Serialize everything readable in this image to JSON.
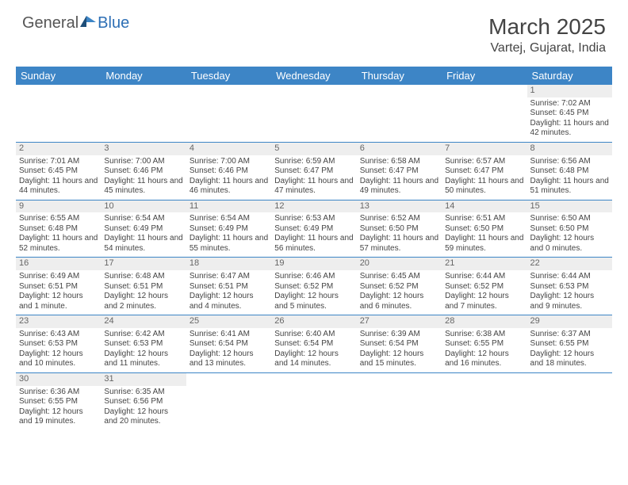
{
  "logo": {
    "part1": "General",
    "part2": "Blue"
  },
  "title": "March 2025",
  "location": "Vartej, Gujarat, India",
  "colors": {
    "header_bg": "#3d85c6",
    "header_text": "#ffffff",
    "row_border": "#3d85c6",
    "daynum_bg": "#eeeeee",
    "body_text": "#444444",
    "logo_accent": "#2d6fb5"
  },
  "day_headers": [
    "Sunday",
    "Monday",
    "Tuesday",
    "Wednesday",
    "Thursday",
    "Friday",
    "Saturday"
  ],
  "weeks": [
    [
      {
        "n": "",
        "sr": "",
        "ss": "",
        "dl": ""
      },
      {
        "n": "",
        "sr": "",
        "ss": "",
        "dl": ""
      },
      {
        "n": "",
        "sr": "",
        "ss": "",
        "dl": ""
      },
      {
        "n": "",
        "sr": "",
        "ss": "",
        "dl": ""
      },
      {
        "n": "",
        "sr": "",
        "ss": "",
        "dl": ""
      },
      {
        "n": "",
        "sr": "",
        "ss": "",
        "dl": ""
      },
      {
        "n": "1",
        "sr": "Sunrise: 7:02 AM",
        "ss": "Sunset: 6:45 PM",
        "dl": "Daylight: 11 hours and 42 minutes."
      }
    ],
    [
      {
        "n": "2",
        "sr": "Sunrise: 7:01 AM",
        "ss": "Sunset: 6:45 PM",
        "dl": "Daylight: 11 hours and 44 minutes."
      },
      {
        "n": "3",
        "sr": "Sunrise: 7:00 AM",
        "ss": "Sunset: 6:46 PM",
        "dl": "Daylight: 11 hours and 45 minutes."
      },
      {
        "n": "4",
        "sr": "Sunrise: 7:00 AM",
        "ss": "Sunset: 6:46 PM",
        "dl": "Daylight: 11 hours and 46 minutes."
      },
      {
        "n": "5",
        "sr": "Sunrise: 6:59 AM",
        "ss": "Sunset: 6:47 PM",
        "dl": "Daylight: 11 hours and 47 minutes."
      },
      {
        "n": "6",
        "sr": "Sunrise: 6:58 AM",
        "ss": "Sunset: 6:47 PM",
        "dl": "Daylight: 11 hours and 49 minutes."
      },
      {
        "n": "7",
        "sr": "Sunrise: 6:57 AM",
        "ss": "Sunset: 6:47 PM",
        "dl": "Daylight: 11 hours and 50 minutes."
      },
      {
        "n": "8",
        "sr": "Sunrise: 6:56 AM",
        "ss": "Sunset: 6:48 PM",
        "dl": "Daylight: 11 hours and 51 minutes."
      }
    ],
    [
      {
        "n": "9",
        "sr": "Sunrise: 6:55 AM",
        "ss": "Sunset: 6:48 PM",
        "dl": "Daylight: 11 hours and 52 minutes."
      },
      {
        "n": "10",
        "sr": "Sunrise: 6:54 AM",
        "ss": "Sunset: 6:49 PM",
        "dl": "Daylight: 11 hours and 54 minutes."
      },
      {
        "n": "11",
        "sr": "Sunrise: 6:54 AM",
        "ss": "Sunset: 6:49 PM",
        "dl": "Daylight: 11 hours and 55 minutes."
      },
      {
        "n": "12",
        "sr": "Sunrise: 6:53 AM",
        "ss": "Sunset: 6:49 PM",
        "dl": "Daylight: 11 hours and 56 minutes."
      },
      {
        "n": "13",
        "sr": "Sunrise: 6:52 AM",
        "ss": "Sunset: 6:50 PM",
        "dl": "Daylight: 11 hours and 57 minutes."
      },
      {
        "n": "14",
        "sr": "Sunrise: 6:51 AM",
        "ss": "Sunset: 6:50 PM",
        "dl": "Daylight: 11 hours and 59 minutes."
      },
      {
        "n": "15",
        "sr": "Sunrise: 6:50 AM",
        "ss": "Sunset: 6:50 PM",
        "dl": "Daylight: 12 hours and 0 minutes."
      }
    ],
    [
      {
        "n": "16",
        "sr": "Sunrise: 6:49 AM",
        "ss": "Sunset: 6:51 PM",
        "dl": "Daylight: 12 hours and 1 minute."
      },
      {
        "n": "17",
        "sr": "Sunrise: 6:48 AM",
        "ss": "Sunset: 6:51 PM",
        "dl": "Daylight: 12 hours and 2 minutes."
      },
      {
        "n": "18",
        "sr": "Sunrise: 6:47 AM",
        "ss": "Sunset: 6:51 PM",
        "dl": "Daylight: 12 hours and 4 minutes."
      },
      {
        "n": "19",
        "sr": "Sunrise: 6:46 AM",
        "ss": "Sunset: 6:52 PM",
        "dl": "Daylight: 12 hours and 5 minutes."
      },
      {
        "n": "20",
        "sr": "Sunrise: 6:45 AM",
        "ss": "Sunset: 6:52 PM",
        "dl": "Daylight: 12 hours and 6 minutes."
      },
      {
        "n": "21",
        "sr": "Sunrise: 6:44 AM",
        "ss": "Sunset: 6:52 PM",
        "dl": "Daylight: 12 hours and 7 minutes."
      },
      {
        "n": "22",
        "sr": "Sunrise: 6:44 AM",
        "ss": "Sunset: 6:53 PM",
        "dl": "Daylight: 12 hours and 9 minutes."
      }
    ],
    [
      {
        "n": "23",
        "sr": "Sunrise: 6:43 AM",
        "ss": "Sunset: 6:53 PM",
        "dl": "Daylight: 12 hours and 10 minutes."
      },
      {
        "n": "24",
        "sr": "Sunrise: 6:42 AM",
        "ss": "Sunset: 6:53 PM",
        "dl": "Daylight: 12 hours and 11 minutes."
      },
      {
        "n": "25",
        "sr": "Sunrise: 6:41 AM",
        "ss": "Sunset: 6:54 PM",
        "dl": "Daylight: 12 hours and 13 minutes."
      },
      {
        "n": "26",
        "sr": "Sunrise: 6:40 AM",
        "ss": "Sunset: 6:54 PM",
        "dl": "Daylight: 12 hours and 14 minutes."
      },
      {
        "n": "27",
        "sr": "Sunrise: 6:39 AM",
        "ss": "Sunset: 6:54 PM",
        "dl": "Daylight: 12 hours and 15 minutes."
      },
      {
        "n": "28",
        "sr": "Sunrise: 6:38 AM",
        "ss": "Sunset: 6:55 PM",
        "dl": "Daylight: 12 hours and 16 minutes."
      },
      {
        "n": "29",
        "sr": "Sunrise: 6:37 AM",
        "ss": "Sunset: 6:55 PM",
        "dl": "Daylight: 12 hours and 18 minutes."
      }
    ],
    [
      {
        "n": "30",
        "sr": "Sunrise: 6:36 AM",
        "ss": "Sunset: 6:55 PM",
        "dl": "Daylight: 12 hours and 19 minutes."
      },
      {
        "n": "31",
        "sr": "Sunrise: 6:35 AM",
        "ss": "Sunset: 6:56 PM",
        "dl": "Daylight: 12 hours and 20 minutes."
      },
      {
        "n": "",
        "sr": "",
        "ss": "",
        "dl": ""
      },
      {
        "n": "",
        "sr": "",
        "ss": "",
        "dl": ""
      },
      {
        "n": "",
        "sr": "",
        "ss": "",
        "dl": ""
      },
      {
        "n": "",
        "sr": "",
        "ss": "",
        "dl": ""
      },
      {
        "n": "",
        "sr": "",
        "ss": "",
        "dl": ""
      }
    ]
  ]
}
